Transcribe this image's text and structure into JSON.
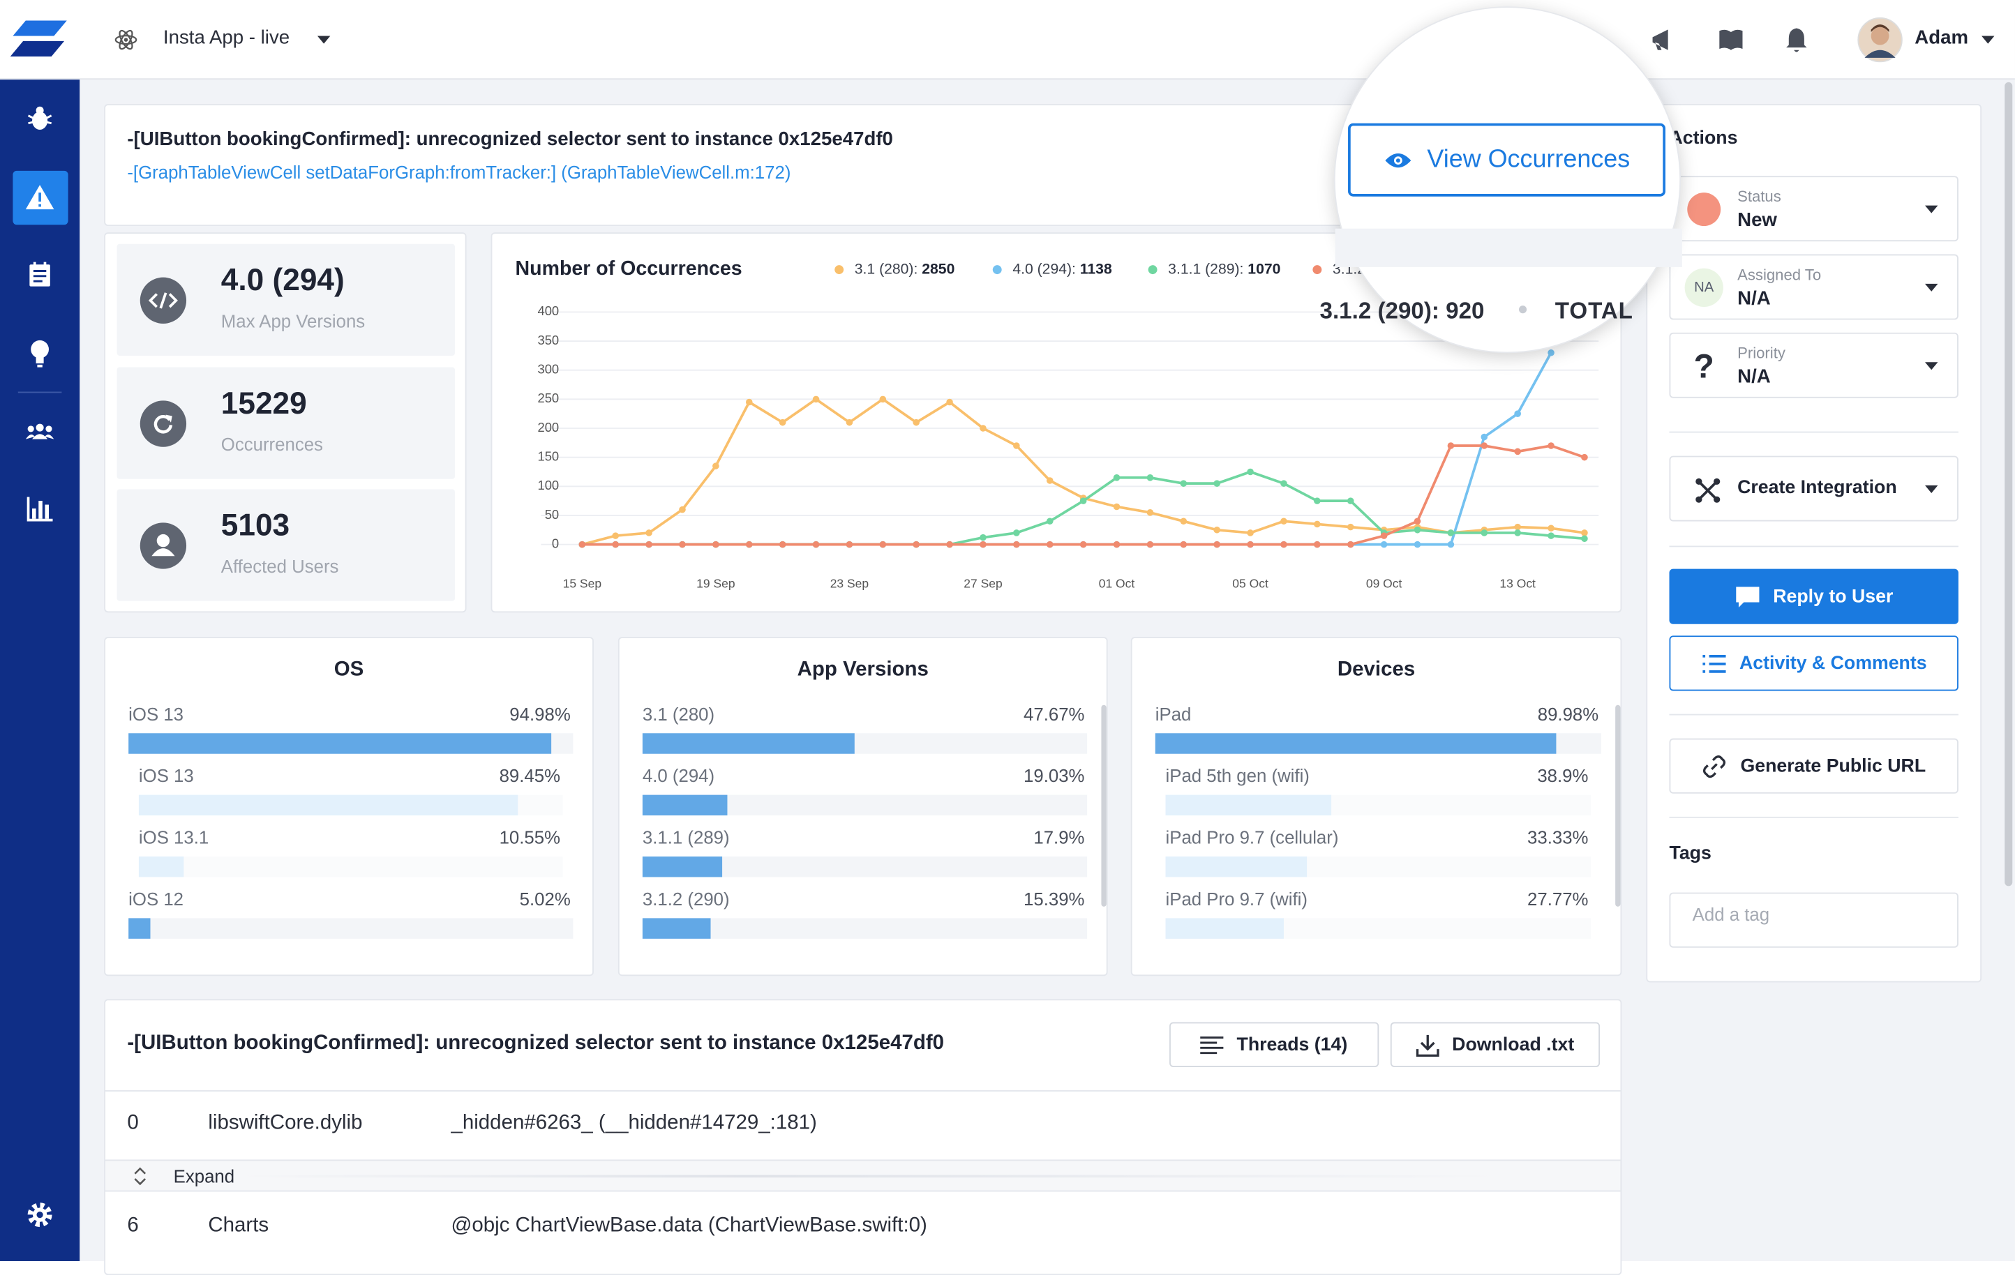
{
  "app": {
    "name": "Insta App - live",
    "user": "Adam"
  },
  "error": {
    "title": "-[UIButton bookingConfirmed]: unrecognized selector sent to instance 0x125e47df0",
    "location": "-[GraphTableViewCell setDataForGraph:fromTracker:] (GraphTableViewCell.m:172)"
  },
  "view_button": "View Occurrences",
  "stats": [
    {
      "value": "4.0 (294)",
      "label": "Max App Versions"
    },
    {
      "value": "15229",
      "label": "Occurrences"
    },
    {
      "value": "5103",
      "label": "Affected Users"
    }
  ],
  "chart_data": {
    "type": "line",
    "title": "Number of Occurrences",
    "categories": [
      "15 Sep",
      null,
      null,
      null,
      "19 Sep",
      null,
      null,
      null,
      "23 Sep",
      null,
      null,
      null,
      "27 Sep",
      null,
      null,
      null,
      "01 Oct",
      null,
      null,
      null,
      "05 Oct",
      null,
      null,
      null,
      "09 Oct",
      null,
      null,
      null,
      "13 Oct",
      null,
      null
    ],
    "series": [
      {
        "name": "3.1 (280)",
        "total": 2850,
        "color": "#f9bf6b",
        "values": [
          0,
          15,
          20,
          60,
          135,
          245,
          210,
          250,
          210,
          250,
          210,
          245,
          200,
          170,
          110,
          80,
          65,
          55,
          40,
          25,
          20,
          40,
          35,
          30,
          25,
          30,
          20,
          25,
          30,
          28,
          20
        ]
      },
      {
        "name": "4.0 (294)",
        "total": 1138,
        "color": "#74c1f0",
        "values": [
          0,
          0,
          0,
          0,
          0,
          0,
          0,
          0,
          0,
          0,
          0,
          0,
          0,
          0,
          0,
          0,
          0,
          0,
          0,
          0,
          0,
          0,
          0,
          0,
          0,
          0,
          0,
          185,
          225,
          330,
          null
        ]
      },
      {
        "name": "3.1.1 (289)",
        "total": 1070,
        "color": "#6fd6a0",
        "values": [
          0,
          0,
          0,
          0,
          0,
          0,
          0,
          0,
          0,
          0,
          0,
          0,
          12,
          20,
          40,
          75,
          115,
          115,
          105,
          105,
          125,
          105,
          75,
          75,
          20,
          25,
          20,
          20,
          20,
          15,
          10
        ]
      },
      {
        "name": "3.1.2 (290)",
        "total": 920,
        "color": "#f08a6e",
        "values": [
          0,
          0,
          0,
          0,
          0,
          0,
          0,
          0,
          0,
          0,
          0,
          0,
          0,
          0,
          0,
          0,
          0,
          0,
          0,
          0,
          0,
          0,
          0,
          0,
          15,
          40,
          170,
          170,
          160,
          170,
          150
        ]
      }
    ],
    "total_label": "TOTAL",
    "ylim": [
      0,
      400
    ],
    "yticks": [
      0,
      50,
      100,
      150,
      200,
      250,
      300,
      350,
      400
    ],
    "grid": true
  },
  "breakdowns": [
    {
      "title": "OS",
      "rows": [
        {
          "name": "iOS 13",
          "value": 94.98,
          "value_label": "94.98%",
          "children": [
            {
              "name": "iOS 13",
              "value": 89.45,
              "value_label": "89.45%"
            },
            {
              "name": "iOS 13.1",
              "value": 10.55,
              "value_label": "10.55%"
            }
          ]
        },
        {
          "name": "iOS 12",
          "value": 5.02,
          "value_label": "5.02%"
        }
      ]
    },
    {
      "title": "App Versions",
      "rows": [
        {
          "name": "3.1 (280)",
          "value": 47.67,
          "value_label": "47.67%"
        },
        {
          "name": "4.0 (294)",
          "value": 19.03,
          "value_label": "19.03%"
        },
        {
          "name": "3.1.1 (289)",
          "value": 17.9,
          "value_label": "17.9%"
        },
        {
          "name": "3.1.2 (290)",
          "value": 15.39,
          "value_label": "15.39%"
        }
      ]
    },
    {
      "title": "Devices",
      "rows": [
        {
          "name": "iPad",
          "value": 89.98,
          "value_label": "89.98%",
          "children": [
            {
              "name": "iPad 5th gen (wifi)",
              "value": 38.9,
              "value_label": "38.9%"
            },
            {
              "name": "iPad Pro 9.7 (cellular)",
              "value": 33.33,
              "value_label": "33.33%"
            },
            {
              "name": "iPad Pro 9.7 (wifi)",
              "value": 27.77,
              "value_label": "27.77%"
            }
          ]
        }
      ]
    }
  ],
  "actions": {
    "title": "Actions",
    "fields": [
      {
        "label": "Status",
        "value": "New"
      },
      {
        "label": "Assigned To",
        "value": "N/A",
        "avatar": "NA"
      },
      {
        "label": "Priority",
        "value": "N/A",
        "icon": "?"
      }
    ],
    "integration": "Create Integration",
    "reply": "Reply to User",
    "activity": "Activity & Comments",
    "public_url": "Generate Public URL",
    "tags_title": "Tags",
    "tag_placeholder": "Add a tag"
  },
  "stack": {
    "title": "-[UIButton bookingConfirmed]: unrecognized selector sent to instance 0x125e47df0",
    "threads": "Threads (14)",
    "download": "Download .txt",
    "frames": [
      {
        "index": 0,
        "module": "libswiftCore.dylib",
        "symbol": "_hidden#6263_ (__hidden#14729_:181)"
      },
      {
        "index": 6,
        "module": "Charts",
        "symbol": "@objc ChartViewBase.data (ChartViewBase.swift:0)"
      }
    ],
    "expand": "Expand"
  }
}
